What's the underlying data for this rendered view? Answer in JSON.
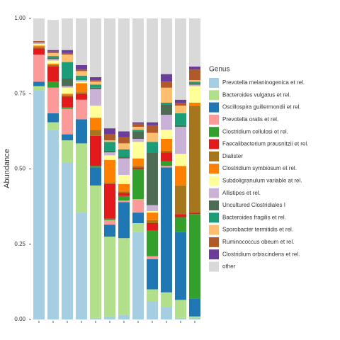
{
  "chart_data": {
    "type": "stacked_bar",
    "y_label": "Abundance",
    "legend_title": "Genus",
    "legend_position": "right",
    "categories": [
      null,
      null,
      null,
      null,
      null,
      null,
      null,
      null,
      null,
      null,
      null,
      null
    ],
    "ylim": [
      0,
      1
    ],
    "yticks": [
      {
        "value": 0,
        "label": "0.00"
      },
      {
        "value": 0.25,
        "label": "0.25"
      },
      {
        "value": 0.5,
        "label": "0.50"
      },
      {
        "value": 0.75,
        "label": "0.75"
      },
      {
        "value": 1,
        "label": "1.00"
      }
    ],
    "series": [
      {
        "name": "Prevotella melaninogenica et rel.",
        "color": "#a6cee3",
        "values": [
          0.76,
          0.63,
          0.52,
          0.355,
          0.005,
          0.01,
          0.015,
          0.29,
          0.06,
          0.04,
          0.005,
          0.005
        ]
      },
      {
        "name": "Bacteroides vulgatus et rel.",
        "color": "#b2df8a",
        "values": [
          0.015,
          0.025,
          0.075,
          0.23,
          0.44,
          0.265,
          0.255,
          0.03,
          0.04,
          0.05,
          0.06,
          0.005
        ]
      },
      {
        "name": "Oscillospira guillermondii et rel.",
        "color": "#1f78b4",
        "values": [
          0.015,
          0.03,
          0.02,
          0.08,
          0.06,
          0.04,
          0.12,
          0.035,
          0.1,
          0.415,
          0.225,
          0.06
        ]
      },
      {
        "name": "Prevotella oralis et rel.",
        "color": "#fb9a99",
        "values": [
          0.09,
          0.085,
          0.085,
          0.065,
          0,
          0.015,
          0.005,
          0.045,
          0.01,
          0.005,
          0,
          0
        ]
      },
      {
        "name": "Clostridium cellulosi et rel.",
        "color": "#33a02c",
        "values": [
          0,
          0.02,
          0.005,
          0,
          0.005,
          0.005,
          0.015,
          0.1,
          0.085,
          0.015,
          0.05,
          0.28
        ]
      },
      {
        "name": "Faecalibacterium prausnitzii et rel.",
        "color": "#e31a1c",
        "values": [
          0.02,
          0.05,
          0.035,
          0.02,
          0.1,
          0.115,
          0.01,
          0.005,
          0.025,
          0.03,
          0.01,
          0.005
        ]
      },
      {
        "name": "Dialister",
        "color": "#a6761d",
        "values": [
          0.005,
          0.005,
          0.005,
          0.005,
          0.02,
          0.005,
          0.005,
          0.005,
          0.01,
          0.005,
          0.095,
          0.355
        ]
      },
      {
        "name": "Clostridium symbiosum et rel.",
        "color": "#ff7f00",
        "values": [
          0.005,
          0.005,
          0.005,
          0.03,
          0.04,
          0.075,
          0.025,
          0.025,
          0.025,
          0.04,
          0.065,
          0.01
        ]
      },
      {
        "name": "Subdoligranulum variable at rel.",
        "color": "#ffff99",
        "values": [
          0.005,
          0.01,
          0.02,
          0.005,
          0.04,
          0.015,
          0.03,
          0.055,
          0.005,
          0.03,
          0.04,
          0.055
        ]
      },
      {
        "name": "Allistipes et rel.",
        "color": "#cab2d6",
        "values": [
          0.005,
          0.005,
          0.005,
          0.005,
          0.055,
          0.01,
          0.055,
          0.01,
          0.02,
          0.05,
          0.09,
          0.005
        ]
      },
      {
        "name": "Uncultured Clostridiales I",
        "color": "#4e6b53",
        "values": [
          0,
          0.005,
          0.025,
          0,
          0.005,
          0.005,
          0.005,
          0.025,
          0.175,
          0.035,
          0.005,
          0.005
        ]
      },
      {
        "name": "Bacteroides fragilis et rel.",
        "color": "#1b9e77",
        "values": [
          0,
          0.005,
          0.055,
          0.015,
          0.01,
          0.03,
          0.025,
          0.005,
          0.035,
          0.005,
          0.04,
          0.005
        ]
      },
      {
        "name": "Sporobacter termitidis et rel.",
        "color": "#fdbf6f",
        "values": [
          0,
          0.01,
          0.025,
          0.015,
          0.01,
          0.005,
          0.02,
          0.01,
          0.03,
          0.05,
          0.025,
          0.005
        ]
      },
      {
        "name": "Ruminococcus obeum et rel.",
        "color": "#b15928",
        "values": [
          0.005,
          0.005,
          0.005,
          0.005,
          0.005,
          0.02,
          0.02,
          0.01,
          0.025,
          0.02,
          0.01,
          0.035
        ]
      },
      {
        "name": "Clostridium orbiscindens et rel.",
        "color": "#6a3d9a",
        "values": [
          0,
          0.005,
          0.01,
          0.015,
          0.01,
          0.02,
          0.02,
          0.005,
          0.01,
          0.025,
          0.01,
          0.01
        ]
      },
      {
        "name": "other",
        "color": "#d9d9d9",
        "values": [
          0.075,
          0.1,
          0.105,
          0.155,
          0.195,
          0.365,
          0.375,
          0.345,
          0.345,
          0.185,
          0.27,
          0.16
        ]
      }
    ]
  }
}
